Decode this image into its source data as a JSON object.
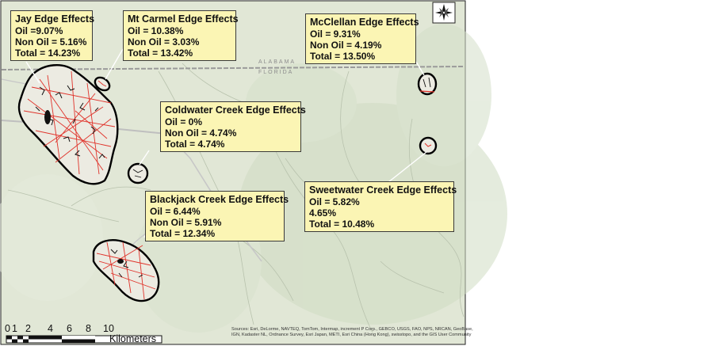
{
  "map": {
    "state_labels": [
      "ALABAMA",
      "FLORIDA"
    ],
    "credits": "Sources: Esri, DeLorme, NAVTEQ, TomTom, Intermap, increment P Corp., GEBCO, USGS, FAO, NPS, NRCAN, GeoBase, IGN, Kadaster NL, Ordnance Survey, Esri Japan, METI, Esri China (Hong Kong), swisstopo, and the GIS User Community",
    "north_arrow_icon": "compass-rose-icon",
    "colors": {
      "road": "#e0322a",
      "buffer": "#000000",
      "callout_fill": "#fbf5b4",
      "terrain": "#dfe6d4"
    }
  },
  "callouts": [
    {
      "id": "jay",
      "title": "Jay Edge Effects",
      "lines": [
        "Oil =9.07%",
        "Non Oil = 5.16%",
        "Total = 14.23%"
      ]
    },
    {
      "id": "mtcarmel",
      "title": "Mt Carmel Edge Effects",
      "lines": [
        "Oil = 10.38%",
        "Non Oil = 3.03%",
        "Total = 13.42%"
      ]
    },
    {
      "id": "mcclellan",
      "title": "McClellan Edge Effects",
      "lines": [
        "Oil = 9.31%",
        "Non Oil = 4.19%",
        "Total = 13.50%"
      ]
    },
    {
      "id": "coldwater",
      "title": "Coldwater Creek Edge Effects",
      "lines": [
        "Oil = 0%",
        "Non Oil = 4.74%",
        "Total = 4.74%"
      ]
    },
    {
      "id": "blackjack",
      "title": "Blackjack Creek Edge Effects",
      "lines": [
        "Oil = 6.44%",
        "Non Oil = 5.91%",
        "Total = 12.34%"
      ]
    },
    {
      "id": "sweetwater",
      "title": "Sweetwater Creek Edge Effects",
      "lines": [
        "Oil = 5.82%",
        "4.65%",
        "Total = 10.48%"
      ]
    }
  ],
  "scale_bar": {
    "ticks": [
      "0",
      "1",
      "2",
      "4",
      "6",
      "8",
      "10"
    ],
    "unit": "Kilometers"
  }
}
